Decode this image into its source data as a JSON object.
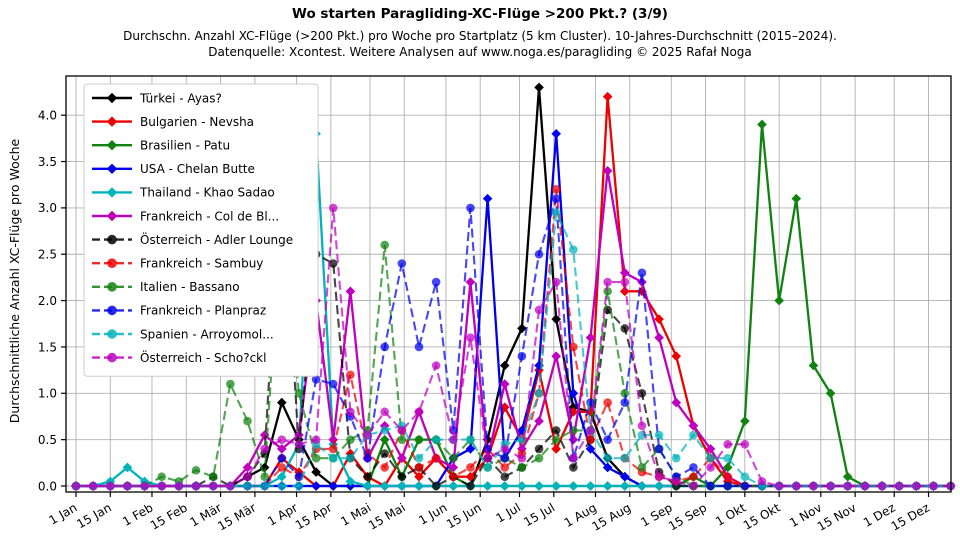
{
  "title": "Wo starten Paragliding-XC-Flüge >200 Pkt.? (3/9)",
  "subtitle1": "Durchschn. Anzahl XC-Flüge (>200 Pkt.) pro Woche pro Startplatz (5 km Cluster). 10-Jahres-Durchschnitt (2015–2024).",
  "subtitle2": "Datenquelle: Xcontest. Weitere Analysen auf www.noga.es/paragliding © 2025 Rafał Noga",
  "chart_data": {
    "type": "line",
    "x_unit": "week_of_year",
    "n_weeks": 52,
    "ylabel": "Durchschnittliche Anzahl XC-Flüge pro Woche",
    "ylim": [
      0,
      4.42
    ],
    "yticks": [
      0.0,
      0.5,
      1.0,
      1.5,
      2.0,
      2.5,
      3.0,
      3.5,
      4.0
    ],
    "grid": true,
    "legend_position": "upper-left",
    "xticks": [
      {
        "label": "1 Jan",
        "week": 0
      },
      {
        "label": "15 Jan",
        "week": 2
      },
      {
        "label": "1 Feb",
        "week": 4.43
      },
      {
        "label": "15 Feb",
        "week": 6.43
      },
      {
        "label": "1 Mär",
        "week": 8.43
      },
      {
        "label": "15 Mär",
        "week": 10.43
      },
      {
        "label": "1 Apr",
        "week": 12.86
      },
      {
        "label": "15 Apr",
        "week": 14.86
      },
      {
        "label": "1 Mai",
        "week": 17.14
      },
      {
        "label": "15 Mai",
        "week": 19.14
      },
      {
        "label": "1 Jun",
        "week": 21.57
      },
      {
        "label": "15 Jun",
        "week": 23.57
      },
      {
        "label": "1 Jul",
        "week": 25.86
      },
      {
        "label": "15 Jul",
        "week": 27.86
      },
      {
        "label": "1 Aug",
        "week": 30.29
      },
      {
        "label": "15 Aug",
        "week": 32.29
      },
      {
        "label": "1 Sep",
        "week": 34.71
      },
      {
        "label": "15 Sep",
        "week": 36.71
      },
      {
        "label": "1 Okt",
        "week": 39
      },
      {
        "label": "15 Okt",
        "week": 41
      },
      {
        "label": "1 Nov",
        "week": 43.43
      },
      {
        "label": "15 Nov",
        "week": 45.43
      },
      {
        "label": "1 Dez",
        "week": 47.71
      },
      {
        "label": "15 Dez",
        "week": 49.71
      }
    ],
    "series": [
      {
        "name": "Türkei - Ayas?",
        "color": "#000000",
        "style": "solid",
        "marker": "diamond",
        "values": [
          0,
          0,
          0,
          0,
          0,
          0,
          0,
          0,
          0,
          0,
          0.1,
          0.2,
          0.9,
          0.5,
          0.15,
          0,
          0,
          0,
          0,
          0,
          0,
          0,
          0,
          0,
          0.5,
          1.3,
          1.7,
          4.3,
          1.8,
          0.85,
          0.8,
          0.3,
          0.1,
          0,
          0,
          0,
          0,
          0,
          0,
          0,
          0,
          0,
          0,
          0,
          0,
          0,
          0,
          0,
          0,
          0,
          0,
          0
        ]
      },
      {
        "name": "Bulgarien - Nevsha",
        "color": "#ee0000",
        "style": "solid",
        "marker": "diamond",
        "values": [
          0,
          0,
          0,
          0,
          0,
          0,
          0,
          0,
          0,
          0,
          0,
          0,
          0.3,
          0.15,
          0,
          0,
          0.35,
          0.1,
          0,
          0.3,
          0.1,
          0.3,
          0.1,
          0.1,
          0.3,
          0.85,
          0.5,
          1.25,
          0.4,
          0.8,
          0.8,
          4.2,
          2.1,
          2.1,
          1.8,
          1.4,
          0.65,
          0.3,
          0.05,
          0,
          0,
          0,
          0,
          0,
          0,
          0,
          0,
          0,
          0,
          0,
          0,
          0
        ]
      },
      {
        "name": "Brasilien - Patu",
        "color": "#0f820f",
        "style": "solid",
        "marker": "diamond",
        "values": [
          0,
          0,
          0,
          0,
          0,
          0,
          0,
          0,
          0,
          0,
          0,
          0,
          0,
          0,
          0,
          0,
          0,
          0,
          0.5,
          0.1,
          0.5,
          0.5,
          0.1,
          0,
          0,
          0,
          0,
          0,
          0,
          0,
          0,
          0,
          0,
          0,
          0,
          0,
          0.1,
          0,
          0.2,
          0.7,
          3.9,
          2.0,
          3.1,
          1.3,
          1.0,
          0.1,
          0,
          0,
          0,
          0,
          0,
          0
        ]
      },
      {
        "name": "USA - Chelan Butte",
        "color": "#0000ee",
        "style": "solid",
        "marker": "diamond",
        "values": [
          0,
          0,
          0,
          0,
          0,
          0,
          0,
          0,
          0,
          0,
          0,
          0,
          0,
          0,
          0,
          0,
          0,
          0,
          0,
          0,
          0,
          0,
          0.3,
          0.4,
          3.1,
          0.3,
          0.6,
          1.3,
          3.8,
          1.0,
          0.4,
          0.2,
          0.1,
          0,
          0,
          0,
          0,
          0,
          0,
          0,
          0,
          0,
          0,
          0,
          0,
          0,
          0,
          0,
          0,
          0,
          0,
          0
        ]
      },
      {
        "name": "Thailand - Khao Sadao",
        "color": "#00b4bc",
        "style": "solid",
        "marker": "diamond",
        "values": [
          0,
          0,
          0.05,
          0.2,
          0.05,
          0,
          0,
          0,
          0,
          0,
          0,
          0,
          0.1,
          0.45,
          3.8,
          0.45,
          0.05,
          0,
          0,
          0,
          0,
          0,
          0,
          0,
          0,
          0,
          0,
          0,
          0,
          0,
          0,
          0,
          0,
          0,
          0,
          0,
          0,
          0,
          0,
          0,
          0,
          0,
          0,
          0,
          0,
          0,
          0,
          0,
          0,
          0,
          0,
          0
        ]
      },
      {
        "name": "Frankreich - Col de Bl...",
        "color": "#bf00bf",
        "style": "solid",
        "marker": "diamond",
        "values": [
          0,
          0,
          0,
          0,
          0,
          0,
          0,
          0,
          0,
          0,
          0.2,
          0.55,
          0.4,
          0.55,
          2.0,
          0.5,
          2.1,
          0.3,
          0.65,
          0.3,
          0.8,
          0.3,
          0.2,
          2.2,
          0.3,
          1.1,
          0.4,
          0.7,
          1.4,
          0.5,
          1.6,
          3.4,
          2.3,
          2.2,
          1.6,
          0.9,
          0.65,
          0.4,
          0.1,
          0,
          0,
          0,
          0,
          0,
          0,
          0,
          0,
          0,
          0,
          0,
          0,
          0
        ]
      },
      {
        "name": "Österreich - Adler Lounge",
        "color": "#000000",
        "style": "dashed",
        "marker": "circle",
        "values": [
          0,
          0,
          0,
          0,
          0,
          0,
          0,
          0,
          0.1,
          0,
          0.1,
          0.35,
          3.4,
          0.4,
          2.5,
          2.4,
          0.3,
          0.1,
          0.35,
          0.1,
          0.2,
          0,
          0.1,
          0,
          0.3,
          0.1,
          0.2,
          0.4,
          0.6,
          0.2,
          0.5,
          1.9,
          1.7,
          1.0,
          0.15,
          0,
          0,
          0,
          0,
          0,
          0,
          0,
          0,
          0,
          0,
          0,
          0,
          0,
          0,
          0,
          0,
          0
        ]
      },
      {
        "name": "Frankreich - Sambuy",
        "color": "#ee0000",
        "style": "dashed",
        "marker": "circle",
        "values": [
          0,
          0,
          0,
          0,
          0,
          0,
          0,
          0,
          0,
          0,
          0,
          0,
          0.2,
          0.1,
          0.4,
          0.4,
          1.2,
          0.35,
          0.2,
          0.6,
          0.2,
          0.3,
          0.1,
          0.2,
          0.4,
          0.2,
          0.35,
          1.0,
          3.2,
          1.5,
          0.5,
          0.9,
          0.3,
          0.15,
          0.1,
          0.05,
          0.1,
          0.3,
          0.1,
          0,
          0,
          0,
          0,
          0,
          0,
          0,
          0,
          0,
          0,
          0,
          0,
          0
        ]
      },
      {
        "name": "Italien - Bassano",
        "color": "#0f820f",
        "style": "dashed",
        "marker": "circle",
        "values": [
          0,
          0,
          0,
          0,
          0,
          0.1,
          0.05,
          0.17,
          0.1,
          1.1,
          0.7,
          0.1,
          3.0,
          1.0,
          0.3,
          0.3,
          0.5,
          0.6,
          2.6,
          0.5,
          0.5,
          0.5,
          0.3,
          0.5,
          0.2,
          0.3,
          0.2,
          0.3,
          0.5,
          0.6,
          0.6,
          2.1,
          1.0,
          0.2,
          0.4,
          0.1,
          0,
          0,
          0,
          0,
          0,
          0,
          0,
          0,
          0,
          0,
          0,
          0,
          0,
          0,
          0,
          0
        ]
      },
      {
        "name": "Frankreich - Planpraz",
        "color": "#0000ee",
        "style": "dashed",
        "marker": "circle",
        "values": [
          0,
          0,
          0,
          0,
          0,
          0,
          0,
          0,
          0,
          0,
          0,
          0,
          0.3,
          0.1,
          1.15,
          1.1,
          0.75,
          0.3,
          1.5,
          2.4,
          1.5,
          2.2,
          0.6,
          3.0,
          0.4,
          0.3,
          1.4,
          2.5,
          3.1,
          0.3,
          0.9,
          0.5,
          0.9,
          2.3,
          0.4,
          0.1,
          0.2,
          0,
          0,
          0,
          0,
          0,
          0,
          0,
          0,
          0,
          0,
          0,
          0,
          0,
          0,
          0
        ]
      },
      {
        "name": "Spanien - Arroyomol...",
        "color": "#00b4bc",
        "style": "dashed",
        "marker": "circle",
        "values": [
          0,
          0,
          0,
          0,
          0,
          0,
          0,
          0,
          0,
          0,
          0,
          0,
          0,
          0,
          0.45,
          0.3,
          0.3,
          0.55,
          0.6,
          0.65,
          0.3,
          0.5,
          0.5,
          0.5,
          0.2,
          0.45,
          0.5,
          1.0,
          2.95,
          2.55,
          0.6,
          0.3,
          0.3,
          0.55,
          0.55,
          0.3,
          0.55,
          0.3,
          0.3,
          0.1,
          0,
          0,
          0,
          0,
          0,
          0,
          0,
          0,
          0,
          0,
          0,
          0
        ]
      },
      {
        "name": "Österreich - Scho?ckl",
        "color": "#bf00bf",
        "style": "dashed",
        "marker": "circle",
        "values": [
          0,
          0,
          0,
          0,
          0,
          0,
          0,
          0,
          0,
          0,
          0.1,
          0.4,
          0.5,
          0.45,
          0.5,
          3.0,
          0.8,
          0.55,
          0.8,
          0.6,
          0.8,
          1.3,
          0.5,
          1.6,
          0.3,
          0.4,
          0.3,
          1.9,
          2.2,
          0.3,
          0.6,
          2.2,
          2.2,
          0.65,
          0.1,
          0.05,
          0,
          0.2,
          0.45,
          0.45,
          0.05,
          0,
          0,
          0,
          0,
          0,
          0,
          0,
          0,
          0,
          0,
          0
        ]
      }
    ]
  }
}
